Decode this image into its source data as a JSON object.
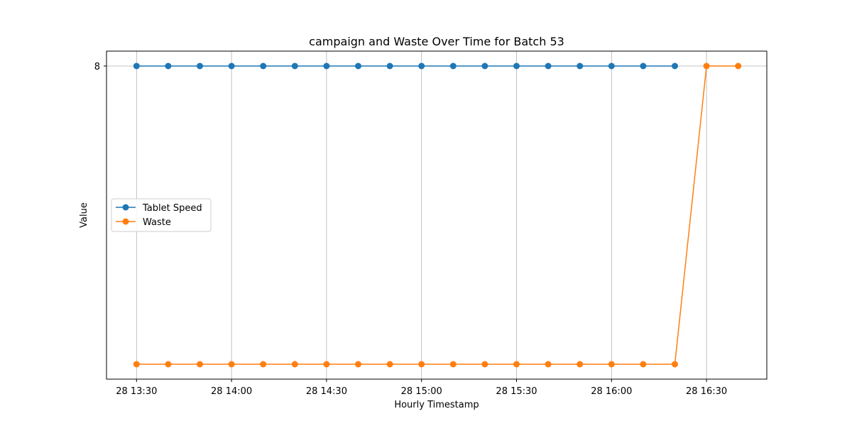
{
  "chart_data": {
    "type": "line",
    "title": "campaign and Waste Over Time for Batch 53",
    "xlabel": "Hourly Timestamp",
    "ylabel": "Value",
    "x": [
      "13:30",
      "13:40",
      "13:50",
      "14:00",
      "14:10",
      "14:20",
      "14:30",
      "14:40",
      "14:50",
      "15:00",
      "15:10",
      "15:20",
      "15:30",
      "15:40",
      "15:50",
      "16:00",
      "16:10",
      "16:20",
      "16:30",
      "16:40"
    ],
    "x_tick_labels": [
      "28 13:30",
      "28 14:00",
      "28 14:30",
      "28 15:00",
      "28 15:30",
      "28 16:00",
      "28 16:30"
    ],
    "y_tick_labels": [
      "8"
    ],
    "ylim": [
      -0.4,
      8.4
    ],
    "grid": "vertical",
    "legend_position": "center-left",
    "series": [
      {
        "name": "Tablet Speed",
        "color": "#1f77b4",
        "values": [
          8,
          8,
          8,
          8,
          8,
          8,
          8,
          8,
          8,
          8,
          8,
          8,
          8,
          8,
          8,
          8,
          8,
          8,
          null,
          null
        ]
      },
      {
        "name": "Waste",
        "color": "#ff7f0e",
        "values": [
          0,
          0,
          0,
          0,
          0,
          0,
          0,
          0,
          0,
          0,
          0,
          0,
          0,
          0,
          0,
          0,
          0,
          0,
          8,
          8
        ]
      }
    ]
  }
}
